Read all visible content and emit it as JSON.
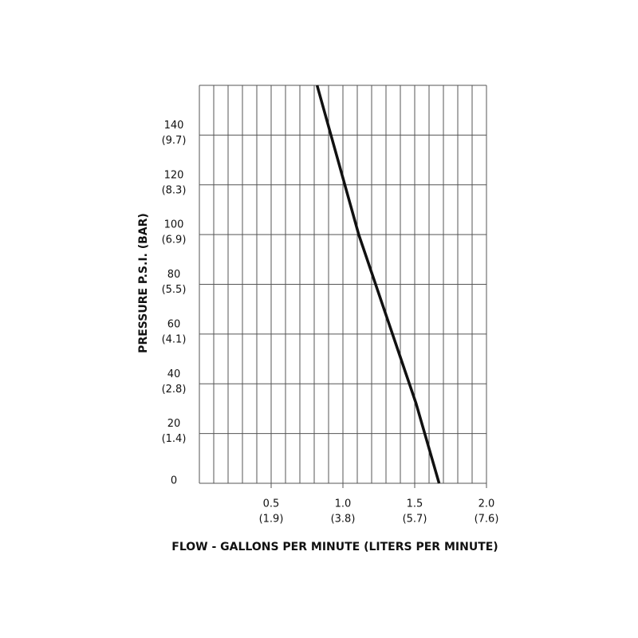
{
  "chart_data": {
    "type": "line",
    "ylabel": "PRESSURE  P.S.I.   (BAR)",
    "xlabel": "FLOW - GALLONS PER MINUTE  (LITERS PER MINUTE)",
    "x": [
      0.82,
      1.11,
      1.51,
      1.67
    ],
    "series": [
      {
        "color": "#111111",
        "values": [
          160,
          100,
          32,
          0
        ]
      }
    ],
    "xlim": [
      0,
      2.0
    ],
    "ylim": [
      0,
      160
    ],
    "xticks": [
      0.5,
      {
        "value": 1,
        "label": "1.0"
      },
      1.5,
      {
        "value": 2,
        "label": "2.0"
      }
    ],
    "xticks_secondary": [
      "(1.9)",
      "(3.8)",
      "(5.7)",
      "(7.6)"
    ],
    "yticks": [
      0,
      20,
      40,
      60,
      80,
      100,
      120,
      140
    ],
    "yticks_secondary": [
      null,
      "(1.4)",
      "(2.8)",
      "(4.1)",
      "(5.5)",
      "(6.9)",
      "(8.3)",
      "(9.7)"
    ],
    "xgrid": [
      0,
      0.1,
      0.2,
      0.3,
      0.4,
      0.5,
      0.6,
      0.7,
      0.8,
      0.9,
      1,
      1.1,
      1.2,
      1.3,
      1.4,
      1.5,
      1.6,
      1.7,
      1.8,
      1.9,
      2
    ],
    "grid": true
  }
}
